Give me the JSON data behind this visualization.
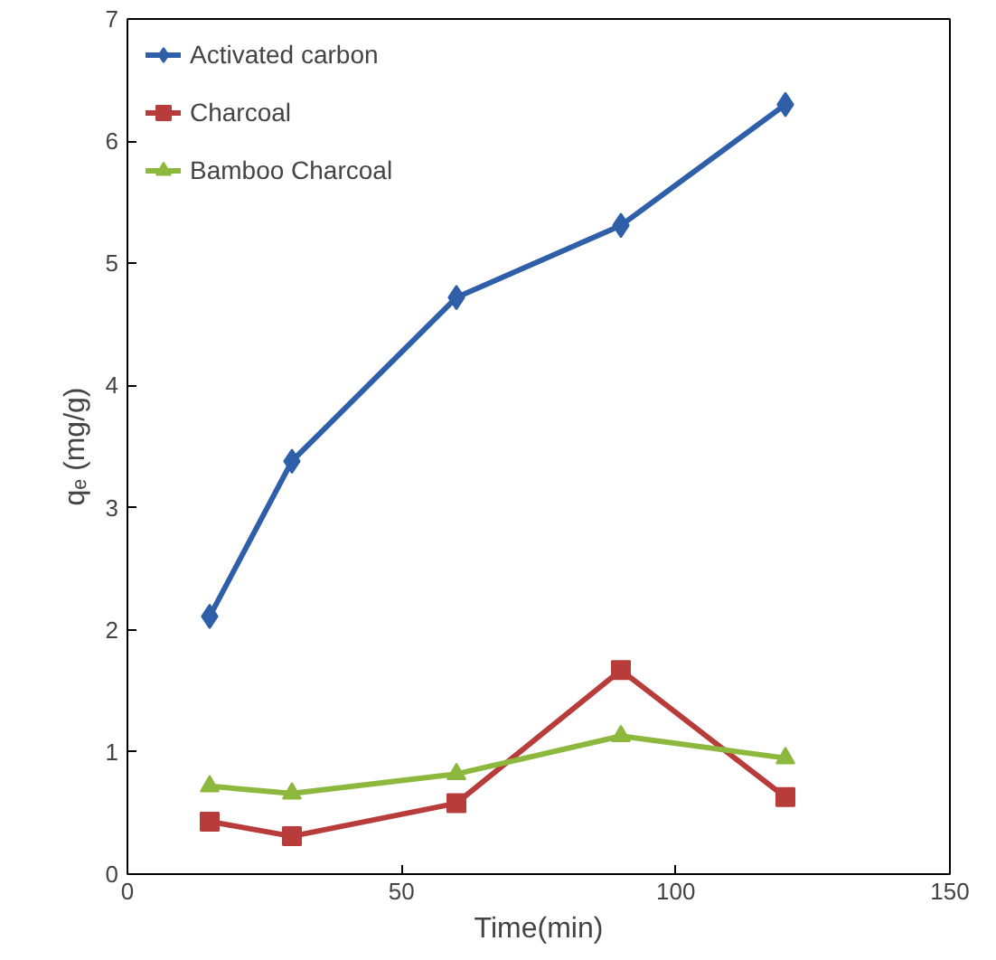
{
  "chart_data": {
    "type": "line",
    "xlabel": "Time(min)",
    "ylabel": "qₑ (mg/g)",
    "x": [
      15,
      30,
      60,
      90,
      120
    ],
    "xlim": [
      0,
      150
    ],
    "xticks": [
      0,
      50,
      100,
      150
    ],
    "ylim": [
      0,
      7
    ],
    "yticks": [
      0,
      1,
      2,
      3,
      4,
      5,
      6,
      7
    ],
    "grid": false,
    "legend": "top left",
    "line_style": "solid",
    "series": [
      {
        "name": "Activated carbon",
        "color": "#2e5fa8",
        "marker": "diamond",
        "values": [
          2.11,
          3.38,
          4.72,
          5.31,
          6.3
        ]
      },
      {
        "name": "Charcoal",
        "color": "#b83c3a",
        "marker": "square",
        "values": [
          0.43,
          0.31,
          0.58,
          1.67,
          0.63
        ]
      },
      {
        "name": "Bamboo Charcoal",
        "color": "#8db83e",
        "marker": "triangle",
        "values": [
          0.72,
          0.66,
          0.82,
          1.13,
          0.95
        ]
      }
    ]
  }
}
